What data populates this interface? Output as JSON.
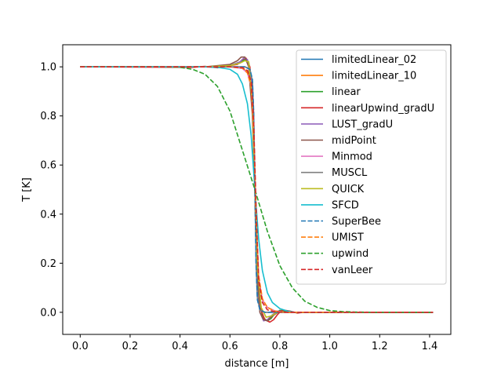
{
  "chart_data": {
    "type": "line",
    "xlabel": "distance [m]",
    "ylabel": "T [K]",
    "xlim": [
      -0.07,
      1.485
    ],
    "ylim": [
      -0.09,
      1.09
    ],
    "x_ticks": [
      "0.0",
      "0.2",
      "0.4",
      "0.6",
      "0.8",
      "1.0",
      "1.2",
      "1.4"
    ],
    "y_ticks": [
      "0.0",
      "0.2",
      "0.4",
      "0.6",
      "0.8",
      "1.0"
    ],
    "legend_position": "upper right",
    "series": [
      {
        "name": "limitedLinear_02",
        "color": "#1f77b4",
        "dashed": false,
        "x": [
          0.0,
          0.5,
          0.6,
          0.66,
          0.68,
          0.69,
          0.695,
          0.7,
          0.705,
          0.71,
          0.72,
          0.74,
          0.76,
          0.8,
          1.0,
          1.414
        ],
        "y": [
          1.0,
          1.0,
          1.0,
          1.0,
          0.99,
          0.94,
          0.8,
          0.5,
          0.2,
          0.06,
          0.01,
          0.0,
          0.0,
          0.0,
          0.0,
          0.0
        ]
      },
      {
        "name": "limitedLinear_10",
        "color": "#ff7f0e",
        "dashed": false,
        "x": [
          0.0,
          0.5,
          0.6,
          0.65,
          0.67,
          0.685,
          0.695,
          0.705,
          0.715,
          0.73,
          0.75,
          0.78,
          0.82,
          1.0,
          1.414
        ],
        "y": [
          1.0,
          1.0,
          1.0,
          0.995,
          0.98,
          0.93,
          0.75,
          0.38,
          0.14,
          0.05,
          0.02,
          0.005,
          0.0,
          0.0,
          0.0
        ]
      },
      {
        "name": "linear",
        "color": "#2ca02c",
        "dashed": false,
        "x": [
          0.0,
          0.5,
          0.6,
          0.64,
          0.66,
          0.675,
          0.685,
          0.695,
          0.705,
          0.715,
          0.73,
          0.75,
          0.765,
          0.78,
          0.8,
          0.83,
          0.86,
          1.0,
          1.414
        ],
        "y": [
          1.0,
          1.0,
          1.005,
          1.02,
          1.03,
          1.02,
          0.95,
          0.72,
          0.35,
          0.1,
          -0.02,
          -0.035,
          -0.025,
          -0.005,
          0.008,
          0.003,
          0.0,
          0.0,
          0.0
        ]
      },
      {
        "name": "linearUpwind_gradU",
        "color": "#d62728",
        "dashed": false,
        "x": [
          0.0,
          0.45,
          0.5,
          0.55,
          0.6,
          0.63,
          0.65,
          0.665,
          0.68,
          0.69,
          0.7,
          0.71,
          0.72,
          0.74,
          0.76,
          0.775,
          0.79,
          0.81,
          0.84,
          0.87,
          0.9,
          1.0,
          1.414
        ],
        "y": [
          1.0,
          0.998,
          1.002,
          0.996,
          1.005,
          1.01,
          1.03,
          1.035,
          1.0,
          0.85,
          0.5,
          0.18,
          0.02,
          -0.03,
          -0.04,
          -0.03,
          -0.01,
          0.01,
          0.005,
          -0.003,
          0.0,
          0.0,
          0.0
        ]
      },
      {
        "name": "LUST_gradU",
        "color": "#9467bd",
        "dashed": false,
        "x": [
          0.0,
          0.5,
          0.6,
          0.64,
          0.655,
          0.67,
          0.685,
          0.7,
          0.71,
          0.72,
          0.735,
          0.75,
          0.77,
          0.79,
          0.82,
          1.0,
          1.414
        ],
        "y": [
          1.0,
          1.0,
          1.005,
          1.02,
          1.035,
          1.03,
          0.95,
          0.5,
          0.15,
          0.0,
          -0.035,
          -0.03,
          -0.01,
          0.005,
          0.0,
          0.0,
          0.0
        ]
      },
      {
        "name": "midPoint",
        "color": "#8c564b",
        "dashed": false,
        "x": [
          0.0,
          0.5,
          0.6,
          0.63,
          0.645,
          0.66,
          0.675,
          0.69,
          0.7,
          0.71,
          0.72,
          0.735,
          0.75,
          0.77,
          0.8,
          0.83,
          1.0,
          1.414
        ],
        "y": [
          1.0,
          1.0,
          1.01,
          1.025,
          1.04,
          1.04,
          1.0,
          0.8,
          0.5,
          0.15,
          0.0,
          -0.03,
          -0.035,
          -0.015,
          0.005,
          0.0,
          0.0,
          0.0
        ]
      },
      {
        "name": "Minmod",
        "color": "#e377c2",
        "dashed": false,
        "x": [
          0.0,
          0.5,
          0.6,
          0.65,
          0.67,
          0.685,
          0.695,
          0.705,
          0.715,
          0.73,
          0.75,
          0.78,
          0.82,
          1.0,
          1.414
        ],
        "y": [
          1.0,
          1.0,
          1.0,
          0.993,
          0.975,
          0.92,
          0.73,
          0.38,
          0.14,
          0.05,
          0.02,
          0.006,
          0.0,
          0.0,
          0.0
        ]
      },
      {
        "name": "MUSCL",
        "color": "#7f7f7f",
        "dashed": false,
        "x": [
          0.0,
          0.5,
          0.6,
          0.66,
          0.68,
          0.69,
          0.695,
          0.7,
          0.705,
          0.71,
          0.72,
          0.74,
          0.8,
          1.0,
          1.414
        ],
        "y": [
          1.0,
          1.0,
          1.0,
          1.0,
          0.99,
          0.94,
          0.8,
          0.5,
          0.2,
          0.06,
          0.01,
          0.0,
          0.0,
          0.0,
          0.0
        ]
      },
      {
        "name": "QUICK",
        "color": "#bcbd22",
        "dashed": false,
        "x": [
          0.0,
          0.5,
          0.6,
          0.64,
          0.66,
          0.675,
          0.69,
          0.7,
          0.71,
          0.725,
          0.745,
          0.765,
          0.79,
          0.82,
          1.0,
          1.414
        ],
        "y": [
          1.0,
          1.0,
          1.005,
          1.015,
          1.025,
          1.02,
          0.85,
          0.5,
          0.18,
          0.02,
          -0.02,
          -0.015,
          0.0,
          0.0,
          0.0,
          0.0
        ]
      },
      {
        "name": "SFCD",
        "color": "#17becf",
        "dashed": false,
        "x": [
          0.0,
          0.5,
          0.55,
          0.6,
          0.63,
          0.65,
          0.67,
          0.685,
          0.7,
          0.715,
          0.73,
          0.75,
          0.77,
          0.8,
          0.83,
          0.86,
          0.9,
          1.0,
          1.414
        ],
        "y": [
          1.0,
          1.0,
          0.998,
          0.99,
          0.97,
          0.93,
          0.85,
          0.72,
          0.5,
          0.3,
          0.17,
          0.08,
          0.04,
          0.015,
          0.005,
          0.0,
          0.0,
          0.0,
          0.0
        ]
      },
      {
        "name": "SuperBee",
        "color": "#1f77b4",
        "dashed": true,
        "x": [
          0.0,
          0.5,
          0.6,
          0.66,
          0.68,
          0.69,
          0.695,
          0.7,
          0.705,
          0.71,
          0.72,
          0.74,
          0.8,
          1.0,
          1.414
        ],
        "y": [
          1.0,
          1.0,
          1.0,
          1.0,
          0.99,
          0.95,
          0.82,
          0.5,
          0.18,
          0.05,
          0.01,
          0.0,
          0.0,
          0.0,
          0.0
        ]
      },
      {
        "name": "UMIST",
        "color": "#ff7f0e",
        "dashed": true,
        "x": [
          0.0,
          0.5,
          0.6,
          0.65,
          0.67,
          0.685,
          0.695,
          0.705,
          0.715,
          0.73,
          0.75,
          0.78,
          0.82,
          1.0,
          1.414
        ],
        "y": [
          1.0,
          1.0,
          1.0,
          0.995,
          0.975,
          0.92,
          0.74,
          0.38,
          0.15,
          0.055,
          0.02,
          0.005,
          0.0,
          0.0,
          0.0
        ]
      },
      {
        "name": "upwind",
        "color": "#2ca02c",
        "dashed": true,
        "x": [
          0.0,
          0.3,
          0.4,
          0.45,
          0.5,
          0.55,
          0.6,
          0.65,
          0.7,
          0.75,
          0.8,
          0.85,
          0.9,
          0.95,
          1.0,
          1.05,
          1.1,
          1.2,
          1.414
        ],
        "y": [
          1.0,
          1.0,
          0.998,
          0.99,
          0.97,
          0.92,
          0.82,
          0.66,
          0.5,
          0.33,
          0.19,
          0.1,
          0.045,
          0.02,
          0.007,
          0.003,
          0.001,
          0.0,
          0.0
        ]
      },
      {
        "name": "vanLeer",
        "color": "#d62728",
        "dashed": true,
        "x": [
          0.0,
          0.5,
          0.6,
          0.65,
          0.67,
          0.685,
          0.695,
          0.705,
          0.715,
          0.73,
          0.75,
          0.78,
          0.82,
          1.0,
          1.414
        ],
        "y": [
          1.0,
          1.0,
          1.0,
          0.997,
          0.985,
          0.94,
          0.78,
          0.42,
          0.13,
          0.04,
          0.01,
          0.002,
          0.0,
          0.0,
          0.0
        ]
      }
    ]
  }
}
